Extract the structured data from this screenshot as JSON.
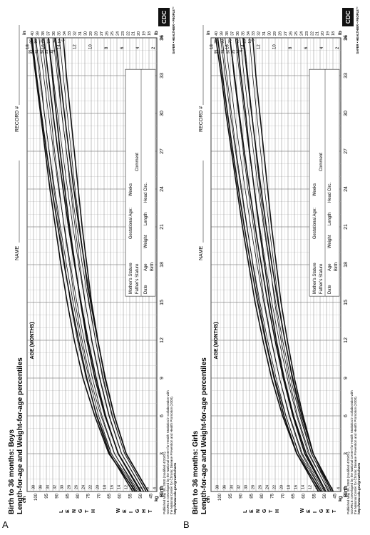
{
  "panels": [
    {
      "letter": "A",
      "title_line1": "Birth to 36 months: Boys",
      "title_line2": "Length-for-age and Weight-for-age percentiles",
      "name_label": "NAME",
      "record_label": "RECORD #"
    },
    {
      "letter": "B",
      "title_line1": "Birth to 36 months: Girls",
      "title_line2": "Length-for-age and Weight-for-age percentiles",
      "name_label": "NAME",
      "record_label": "RECORD #"
    }
  ],
  "age_axis_label": "AGE (MONTHS)",
  "length_axis_letters": [
    "L",
    "E",
    "N",
    "G",
    "T",
    "H"
  ],
  "weight_axis_letters": [
    "W",
    "E",
    "I",
    "G",
    "H",
    "T"
  ],
  "footer": {
    "line1": "Published May 30, 2000 (modified 4/20/01).",
    "line2": "SOURCE: Developed by the National Center for Health Statistics in collaboration with",
    "line3": "the National Center for Chronic Disease Prevention and Health Promotion (2000).",
    "line4": "http://www.cdc.gov/growthcharts",
    "logo": "CDC",
    "safer": "SAFER • HEALTHIER • PEOPLE™"
  },
  "record_table": {
    "mothers_stature": "Mother's Stature",
    "fathers_stature": "Father's Stature",
    "gestational_age": "Gestational Age:",
    "weeks": "Weeks",
    "comment": "Comment",
    "columns": [
      "Date",
      "Age",
      "Weight",
      "Length",
      "Head Circ."
    ],
    "birth": "Birth"
  },
  "chart_data": [
    {
      "type": "line",
      "title": "Birth to 36 months: Boys",
      "subtitle": "Length-for-age and Weight-for-age percentiles",
      "xlabel": "AGE (MONTHS)",
      "x_ticks": [
        "Birth",
        "3",
        "6",
        "9",
        "12",
        "15",
        "18",
        "21",
        "24",
        "27",
        "30",
        "33",
        "36"
      ],
      "length": {
        "units": [
          "cm",
          "in"
        ],
        "ylim_cm": [
          42,
          104
        ],
        "x": [
          0,
          3,
          6,
          9,
          12,
          15,
          18,
          21,
          24,
          27,
          30,
          33,
          36
        ],
        "series": [
          {
            "name": "95",
            "values": [
              53.5,
              64.5,
              70.8,
              75.5,
              79.4,
              83.0,
              86.3,
              89.3,
              92.1,
              94.7,
              97.2,
              99.5,
              101.7
            ]
          },
          {
            "name": "90",
            "values": [
              52.7,
              63.7,
              69.8,
              74.5,
              78.4,
              82.0,
              85.2,
              88.1,
              90.8,
              93.4,
              95.8,
              98.1,
              100.3
            ]
          },
          {
            "name": "75",
            "values": [
              51.5,
              62.2,
              68.2,
              72.8,
              76.7,
              80.2,
              83.3,
              86.2,
              88.9,
              91.4,
              93.8,
              96.1,
              98.3
            ]
          },
          {
            "name": "50",
            "values": [
              49.9,
              60.5,
              66.5,
              71.0,
              74.9,
              78.2,
              81.3,
              84.2,
              86.8,
              89.3,
              91.6,
              93.8,
              96.0
            ]
          },
          {
            "name": "25",
            "values": [
              48.2,
              58.8,
              64.7,
              69.2,
              73.0,
              76.3,
              79.3,
              82.1,
              84.7,
              87.1,
              89.4,
              91.6,
              93.7
            ]
          },
          {
            "name": "10",
            "values": [
              47.0,
              57.4,
              63.2,
              67.6,
              71.3,
              74.6,
              77.6,
              80.3,
              82.8,
              85.2,
              87.4,
              89.6,
              91.6
            ]
          },
          {
            "name": "5",
            "values": [
              46.2,
              56.6,
              62.3,
              66.6,
              70.3,
              73.6,
              76.5,
              79.2,
              81.7,
              84.0,
              86.2,
              88.3,
              90.4
            ]
          }
        ]
      },
      "weight": {
        "units": [
          "kg",
          "lb"
        ],
        "ylim_kg": [
          1.5,
          18
        ],
        "x": [
          0,
          3,
          6,
          9,
          12,
          15,
          18,
          21,
          24,
          27,
          30,
          33,
          36
        ],
        "series": [
          {
            "name": "95",
            "values": [
              4.2,
              7.6,
              9.4,
              10.9,
              12.0,
              12.9,
              13.7,
              14.4,
              15.1,
              15.7,
              16.3,
              16.9,
              17.5
            ]
          },
          {
            "name": "90",
            "values": [
              4.0,
              7.3,
              9.1,
              10.5,
              11.6,
              12.5,
              13.2,
              13.9,
              14.6,
              15.2,
              15.8,
              16.3,
              16.9
            ]
          },
          {
            "name": "75",
            "values": [
              3.8,
              6.9,
              8.6,
              10.0,
              11.0,
              11.9,
              12.6,
              13.3,
              13.9,
              14.5,
              15.0,
              15.6,
              16.1
            ]
          },
          {
            "name": "50",
            "values": [
              3.5,
              6.4,
              8.1,
              9.4,
              10.4,
              11.2,
              11.9,
              12.6,
              13.2,
              13.8,
              14.3,
              14.8,
              15.3
            ]
          },
          {
            "name": "25",
            "values": [
              3.2,
              6.0,
              7.6,
              8.8,
              9.8,
              10.6,
              11.3,
              11.9,
              12.5,
              13.0,
              13.6,
              14.0,
              14.5
            ]
          },
          {
            "name": "10",
            "values": [
              2.9,
              5.6,
              7.2,
              8.4,
              9.3,
              10.1,
              10.7,
              11.3,
              11.9,
              12.4,
              12.9,
              13.4,
              13.9
            ]
          },
          {
            "name": "5",
            "values": [
              2.6,
              5.4,
              6.9,
              8.1,
              9.0,
              9.8,
              10.4,
              11.0,
              11.5,
              12.0,
              12.5,
              13.0,
              13.4
            ]
          }
        ]
      }
    },
    {
      "type": "line",
      "title": "Birth to 36 months: Girls",
      "subtitle": "Length-for-age and Weight-for-age percentiles",
      "xlabel": "AGE (MONTHS)",
      "x_ticks": [
        "Birth",
        "3",
        "6",
        "9",
        "12",
        "15",
        "18",
        "21",
        "24",
        "27",
        "30",
        "33",
        "36"
      ],
      "length": {
        "units": [
          "cm",
          "in"
        ],
        "ylim_cm": [
          42,
          104
        ],
        "x": [
          0,
          3,
          6,
          9,
          12,
          15,
          18,
          21,
          24,
          27,
          30,
          33,
          36
        ],
        "series": [
          {
            "name": "95",
            "values": [
              52.7,
              63.0,
              69.1,
              73.9,
              78.0,
              81.7,
              85.0,
              88.1,
              90.9,
              93.6,
              96.1,
              98.5,
              100.8
            ]
          },
          {
            "name": "90",
            "values": [
              52.0,
              62.2,
              68.2,
              72.9,
              77.0,
              80.6,
              83.9,
              86.9,
              89.7,
              92.3,
              94.8,
              97.2,
              99.5
            ]
          },
          {
            "name": "75",
            "values": [
              50.8,
              60.8,
              66.7,
              71.3,
              75.3,
              78.8,
              82.0,
              85.0,
              87.7,
              90.3,
              92.8,
              95.1,
              97.3
            ]
          },
          {
            "name": "50",
            "values": [
              49.3,
              59.2,
              64.9,
              69.5,
              73.4,
              76.9,
              80.0,
              82.9,
              85.6,
              88.1,
              90.5,
              92.8,
              95.0
            ]
          },
          {
            "name": "25",
            "values": [
              47.7,
              57.5,
              63.1,
              67.6,
              71.5,
              74.9,
              77.9,
              80.7,
              83.3,
              85.8,
              88.1,
              90.3,
              92.4
            ]
          },
          {
            "name": "10",
            "values": [
              46.4,
              56.1,
              61.6,
              66.0,
              69.8,
              73.1,
              76.1,
              78.8,
              81.4,
              83.7,
              86.0,
              88.2,
              90.2
            ]
          },
          {
            "name": "5",
            "values": [
              45.6,
              55.2,
              60.6,
              65.0,
              68.7,
              72.0,
              74.9,
              77.6,
              80.1,
              82.4,
              84.6,
              86.7,
              88.7
            ]
          }
        ]
      },
      "weight": {
        "units": [
          "kg",
          "lb"
        ],
        "ylim_kg": [
          1.5,
          18
        ],
        "x": [
          0,
          3,
          6,
          9,
          12,
          15,
          18,
          21,
          24,
          27,
          30,
          33,
          36
        ],
        "series": [
          {
            "name": "95",
            "values": [
              4.0,
              7.1,
              8.9,
              10.3,
              11.4,
              12.4,
              13.2,
              14.0,
              14.7,
              15.4,
              16.1,
              16.7,
              17.4
            ]
          },
          {
            "name": "90",
            "values": [
              3.8,
              6.8,
              8.5,
              9.9,
              11.0,
              11.9,
              12.7,
              13.4,
              14.1,
              14.8,
              15.4,
              16.0,
              16.6
            ]
          },
          {
            "name": "75",
            "values": [
              3.6,
              6.4,
              8.0,
              9.3,
              10.3,
              11.2,
              11.9,
              12.6,
              13.3,
              13.9,
              14.5,
              15.1,
              15.6
            ]
          },
          {
            "name": "50",
            "values": [
              3.4,
              5.9,
              7.5,
              8.7,
              9.7,
              10.5,
              11.2,
              11.9,
              12.5,
              13.1,
              13.6,
              14.2,
              14.7
            ]
          },
          {
            "name": "25",
            "values": [
              3.1,
              5.5,
              7.0,
              8.1,
              9.1,
              9.9,
              10.5,
              11.2,
              11.8,
              12.3,
              12.8,
              13.3,
              13.8
            ]
          },
          {
            "name": "10",
            "values": [
              2.9,
              5.2,
              6.6,
              7.7,
              8.6,
              9.4,
              10.0,
              10.6,
              11.2,
              11.7,
              12.2,
              12.7,
              13.1
            ]
          },
          {
            "name": "5",
            "values": [
              2.7,
              5.0,
              6.3,
              7.4,
              8.3,
              9.1,
              9.7,
              10.3,
              10.8,
              11.3,
              11.8,
              12.3,
              12.7
            ]
          }
        ]
      }
    }
  ]
}
